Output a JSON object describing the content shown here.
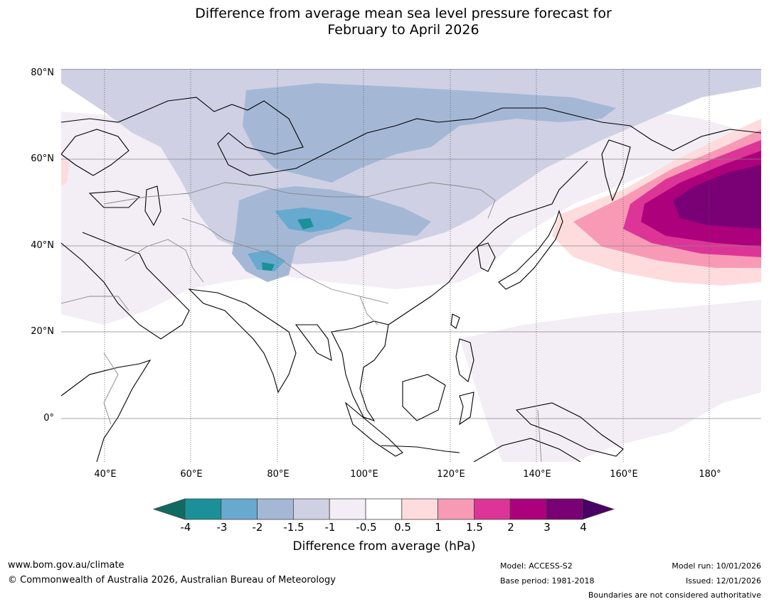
{
  "title": {
    "line1": "Difference from average mean sea level pressure forecast for",
    "line2": "February to April 2026"
  },
  "axes": {
    "lat_labels": [
      "80°N",
      "60°N",
      "40°N",
      "20°N",
      "0°"
    ],
    "lon_labels": [
      "40°E",
      "60°E",
      "80°E",
      "100°E",
      "120°E",
      "140°E",
      "160°E",
      "180°"
    ]
  },
  "colorbar": {
    "title": "Difference from average (hPa)",
    "tick_labels": [
      "-4",
      "-3",
      "-2",
      "-1.5",
      "-1",
      "-0.5",
      "0.5",
      "1",
      "1.5",
      "2",
      "3",
      "4"
    ],
    "colors": [
      "#0e6b61",
      "#1b9099",
      "#68a9d0",
      "#a4b8d6",
      "#cfd0e4",
      "#f3edf5",
      "#ffffff",
      "#fedcdd",
      "#f89ab6",
      "#dc3597",
      "#ad007c",
      "#790075",
      "#4a0064"
    ]
  },
  "footer": {
    "website": "www.bom.gov.au/climate",
    "copyright": "© Commonwealth of Australia 2026, Australian Bureau of Meteorology",
    "model": "Model: ACCESS-S2",
    "base_period": "Base period: 1981-2018",
    "model_run": "Model run: 10/01/2026",
    "issued": "Issued: 12/01/2026",
    "disclaimer": "Boundaries are not considered authoritative"
  },
  "map_data": {
    "variable": "Mean sea level pressure anomaly",
    "units": "hPa",
    "season": "February to April 2026",
    "extent": {
      "lon_min": 30,
      "lon_max": 192,
      "lat_min": -10,
      "lat_max": 80
    }
  }
}
